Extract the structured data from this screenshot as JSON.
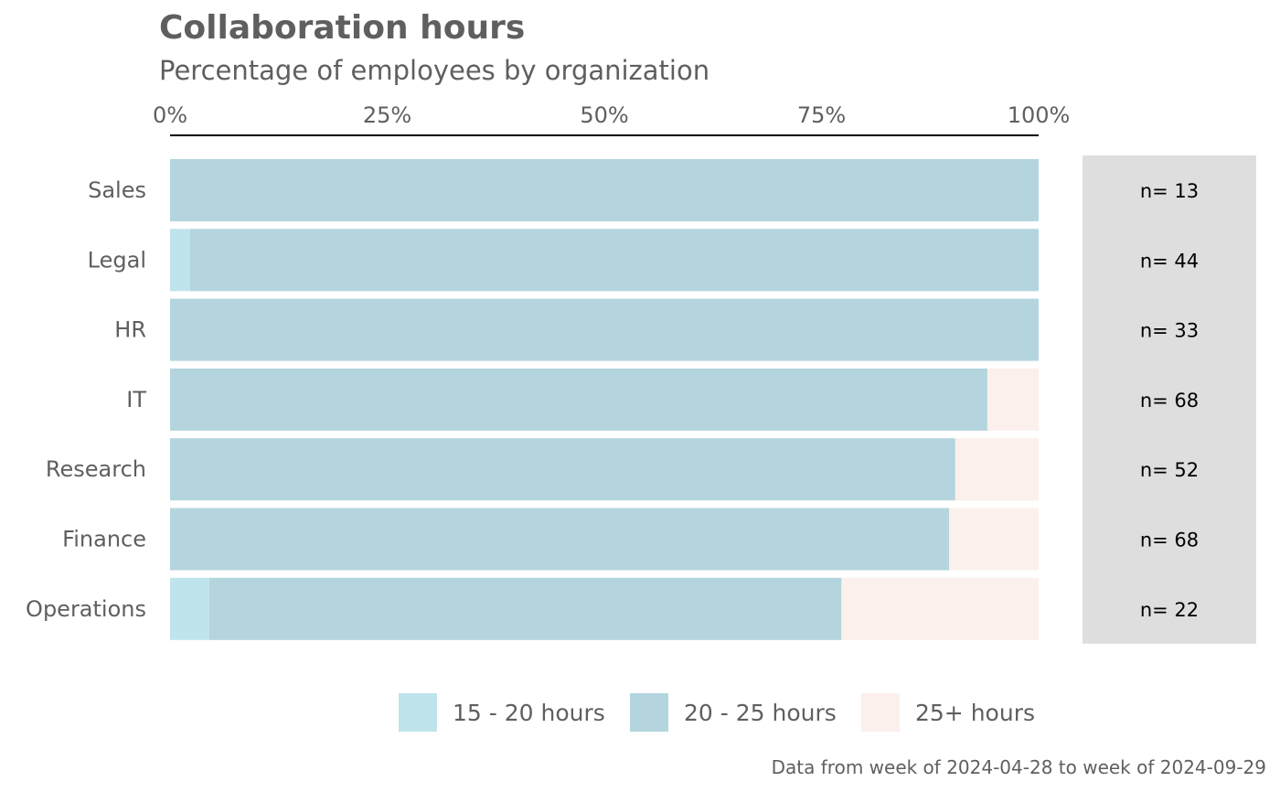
{
  "chart_data": {
    "type": "bar",
    "orientation": "horizontal",
    "stacked": true,
    "title": "Collaboration hours",
    "subtitle": "Percentage of employees by organization",
    "caption": "Data from week of 2024-04-28 to week of 2024-09-29",
    "xlim": [
      0,
      100
    ],
    "x_ticks": [
      {
        "value": 0,
        "label": "0%"
      },
      {
        "value": 25,
        "label": "25%"
      },
      {
        "value": 50,
        "label": "50%"
      },
      {
        "value": 75,
        "label": "75%"
      },
      {
        "value": 100,
        "label": "100%"
      }
    ],
    "x_axis_position": "top",
    "grid": false,
    "legend_position": "bottom",
    "categories": [
      "Sales",
      "Legal",
      "HR",
      "IT",
      "Research",
      "Finance",
      "Operations"
    ],
    "series": [
      {
        "name": "15 - 20 hours",
        "color": "#bfe4ec",
        "values": [
          0,
          2.3,
          0,
          0,
          0,
          0,
          4.5
        ]
      },
      {
        "name": "20 - 25 hours",
        "color": "#b4d5dd",
        "values": [
          100,
          97.7,
          100,
          94.1,
          90.4,
          89.7,
          72.8
        ]
      },
      {
        "name": "25+ hours",
        "color": "#fbf0eb",
        "values": [
          0,
          0,
          0,
          5.9,
          9.6,
          10.3,
          22.7
        ]
      }
    ],
    "n_labels": [
      "n= 13",
      "n= 44",
      "n= 33",
      "n= 68",
      "n= 52",
      "n= 68",
      "n= 22"
    ],
    "n_panel_color": "#dedede"
  }
}
